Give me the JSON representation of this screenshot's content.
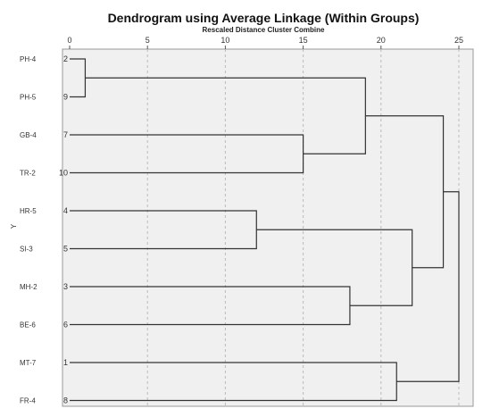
{
  "chart_data": {
    "type": "dendrogram",
    "title": "Dendrogram using Average Linkage (Within Groups)",
    "subtitle": "Rescaled Distance Cluster Combine",
    "ylabel": "Y",
    "xlim": [
      0,
      25
    ],
    "x_ticks": [
      "0",
      "5",
      "10",
      "15",
      "20",
      "25"
    ],
    "leaves": [
      {
        "label": "PH-4",
        "case": "2"
      },
      {
        "label": "PH-5",
        "case": "9"
      },
      {
        "label": "GB-4",
        "case": "7"
      },
      {
        "label": "TR-2",
        "case": "10"
      },
      {
        "label": "HR-5",
        "case": "4"
      },
      {
        "label": "SI-3",
        "case": "5"
      },
      {
        "label": "MH-2",
        "case": "3"
      },
      {
        "label": "BE-6",
        "case": "6"
      },
      {
        "label": "MT-7",
        "case": "1"
      },
      {
        "label": "FR-4",
        "case": "8"
      }
    ],
    "merges": [
      {
        "a": "L0",
        "b": "L1",
        "distance": 1
      },
      {
        "a": "L2",
        "b": "L3",
        "distance": 15
      },
      {
        "a": "M0",
        "b": "M1",
        "distance": 19
      },
      {
        "a": "L4",
        "b": "L5",
        "distance": 12
      },
      {
        "a": "L6",
        "b": "L7",
        "distance": 18
      },
      {
        "a": "M3",
        "b": "M4",
        "distance": 22
      },
      {
        "a": "M2",
        "b": "M5",
        "distance": 24
      },
      {
        "a": "L8",
        "b": "L9",
        "distance": 21
      },
      {
        "a": "M6",
        "b": "M7",
        "distance": 25
      }
    ],
    "grid": true,
    "colors": {
      "background": "#f0f0f0",
      "lines": "#333333",
      "grid": "#bbbbbb"
    }
  }
}
